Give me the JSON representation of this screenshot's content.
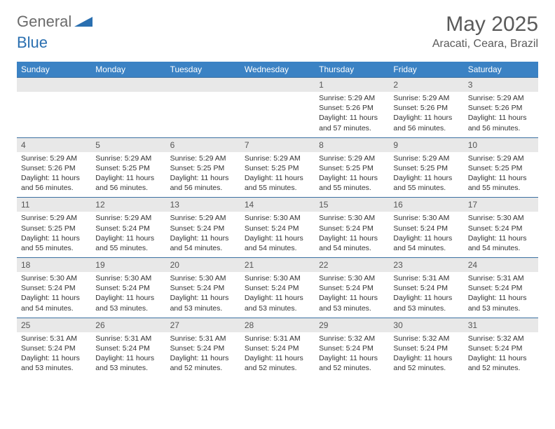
{
  "brand": {
    "general": "General",
    "blue": "Blue"
  },
  "title": {
    "month": "May 2025",
    "location": "Aracati, Ceara, Brazil"
  },
  "colors": {
    "header_bg": "#3b82c4",
    "header_text": "#ffffff",
    "numrow_bg": "#e8e8e8",
    "rule": "#3b6fa0",
    "text": "#333333"
  },
  "font": {
    "family": "Arial",
    "title_size_pt": 22,
    "location_size_pt": 12,
    "dow_size_pt": 9,
    "body_size_pt": 8
  },
  "calendar": {
    "type": "table",
    "days_of_week": [
      "Sunday",
      "Monday",
      "Tuesday",
      "Wednesday",
      "Thursday",
      "Friday",
      "Saturday"
    ],
    "weeks": [
      [
        null,
        null,
        null,
        null,
        {
          "n": "1",
          "sr": "Sunrise: 5:29 AM",
          "ss": "Sunset: 5:26 PM",
          "dl": "Daylight: 11 hours and 57 minutes."
        },
        {
          "n": "2",
          "sr": "Sunrise: 5:29 AM",
          "ss": "Sunset: 5:26 PM",
          "dl": "Daylight: 11 hours and 56 minutes."
        },
        {
          "n": "3",
          "sr": "Sunrise: 5:29 AM",
          "ss": "Sunset: 5:26 PM",
          "dl": "Daylight: 11 hours and 56 minutes."
        }
      ],
      [
        {
          "n": "4",
          "sr": "Sunrise: 5:29 AM",
          "ss": "Sunset: 5:26 PM",
          "dl": "Daylight: 11 hours and 56 minutes."
        },
        {
          "n": "5",
          "sr": "Sunrise: 5:29 AM",
          "ss": "Sunset: 5:25 PM",
          "dl": "Daylight: 11 hours and 56 minutes."
        },
        {
          "n": "6",
          "sr": "Sunrise: 5:29 AM",
          "ss": "Sunset: 5:25 PM",
          "dl": "Daylight: 11 hours and 56 minutes."
        },
        {
          "n": "7",
          "sr": "Sunrise: 5:29 AM",
          "ss": "Sunset: 5:25 PM",
          "dl": "Daylight: 11 hours and 55 minutes."
        },
        {
          "n": "8",
          "sr": "Sunrise: 5:29 AM",
          "ss": "Sunset: 5:25 PM",
          "dl": "Daylight: 11 hours and 55 minutes."
        },
        {
          "n": "9",
          "sr": "Sunrise: 5:29 AM",
          "ss": "Sunset: 5:25 PM",
          "dl": "Daylight: 11 hours and 55 minutes."
        },
        {
          "n": "10",
          "sr": "Sunrise: 5:29 AM",
          "ss": "Sunset: 5:25 PM",
          "dl": "Daylight: 11 hours and 55 minutes."
        }
      ],
      [
        {
          "n": "11",
          "sr": "Sunrise: 5:29 AM",
          "ss": "Sunset: 5:25 PM",
          "dl": "Daylight: 11 hours and 55 minutes."
        },
        {
          "n": "12",
          "sr": "Sunrise: 5:29 AM",
          "ss": "Sunset: 5:24 PM",
          "dl": "Daylight: 11 hours and 55 minutes."
        },
        {
          "n": "13",
          "sr": "Sunrise: 5:29 AM",
          "ss": "Sunset: 5:24 PM",
          "dl": "Daylight: 11 hours and 54 minutes."
        },
        {
          "n": "14",
          "sr": "Sunrise: 5:30 AM",
          "ss": "Sunset: 5:24 PM",
          "dl": "Daylight: 11 hours and 54 minutes."
        },
        {
          "n": "15",
          "sr": "Sunrise: 5:30 AM",
          "ss": "Sunset: 5:24 PM",
          "dl": "Daylight: 11 hours and 54 minutes."
        },
        {
          "n": "16",
          "sr": "Sunrise: 5:30 AM",
          "ss": "Sunset: 5:24 PM",
          "dl": "Daylight: 11 hours and 54 minutes."
        },
        {
          "n": "17",
          "sr": "Sunrise: 5:30 AM",
          "ss": "Sunset: 5:24 PM",
          "dl": "Daylight: 11 hours and 54 minutes."
        }
      ],
      [
        {
          "n": "18",
          "sr": "Sunrise: 5:30 AM",
          "ss": "Sunset: 5:24 PM",
          "dl": "Daylight: 11 hours and 54 minutes."
        },
        {
          "n": "19",
          "sr": "Sunrise: 5:30 AM",
          "ss": "Sunset: 5:24 PM",
          "dl": "Daylight: 11 hours and 53 minutes."
        },
        {
          "n": "20",
          "sr": "Sunrise: 5:30 AM",
          "ss": "Sunset: 5:24 PM",
          "dl": "Daylight: 11 hours and 53 minutes."
        },
        {
          "n": "21",
          "sr": "Sunrise: 5:30 AM",
          "ss": "Sunset: 5:24 PM",
          "dl": "Daylight: 11 hours and 53 minutes."
        },
        {
          "n": "22",
          "sr": "Sunrise: 5:30 AM",
          "ss": "Sunset: 5:24 PM",
          "dl": "Daylight: 11 hours and 53 minutes."
        },
        {
          "n": "23",
          "sr": "Sunrise: 5:31 AM",
          "ss": "Sunset: 5:24 PM",
          "dl": "Daylight: 11 hours and 53 minutes."
        },
        {
          "n": "24",
          "sr": "Sunrise: 5:31 AM",
          "ss": "Sunset: 5:24 PM",
          "dl": "Daylight: 11 hours and 53 minutes."
        }
      ],
      [
        {
          "n": "25",
          "sr": "Sunrise: 5:31 AM",
          "ss": "Sunset: 5:24 PM",
          "dl": "Daylight: 11 hours and 53 minutes."
        },
        {
          "n": "26",
          "sr": "Sunrise: 5:31 AM",
          "ss": "Sunset: 5:24 PM",
          "dl": "Daylight: 11 hours and 53 minutes."
        },
        {
          "n": "27",
          "sr": "Sunrise: 5:31 AM",
          "ss": "Sunset: 5:24 PM",
          "dl": "Daylight: 11 hours and 52 minutes."
        },
        {
          "n": "28",
          "sr": "Sunrise: 5:31 AM",
          "ss": "Sunset: 5:24 PM",
          "dl": "Daylight: 11 hours and 52 minutes."
        },
        {
          "n": "29",
          "sr": "Sunrise: 5:32 AM",
          "ss": "Sunset: 5:24 PM",
          "dl": "Daylight: 11 hours and 52 minutes."
        },
        {
          "n": "30",
          "sr": "Sunrise: 5:32 AM",
          "ss": "Sunset: 5:24 PM",
          "dl": "Daylight: 11 hours and 52 minutes."
        },
        {
          "n": "31",
          "sr": "Sunrise: 5:32 AM",
          "ss": "Sunset: 5:24 PM",
          "dl": "Daylight: 11 hours and 52 minutes."
        }
      ]
    ]
  }
}
